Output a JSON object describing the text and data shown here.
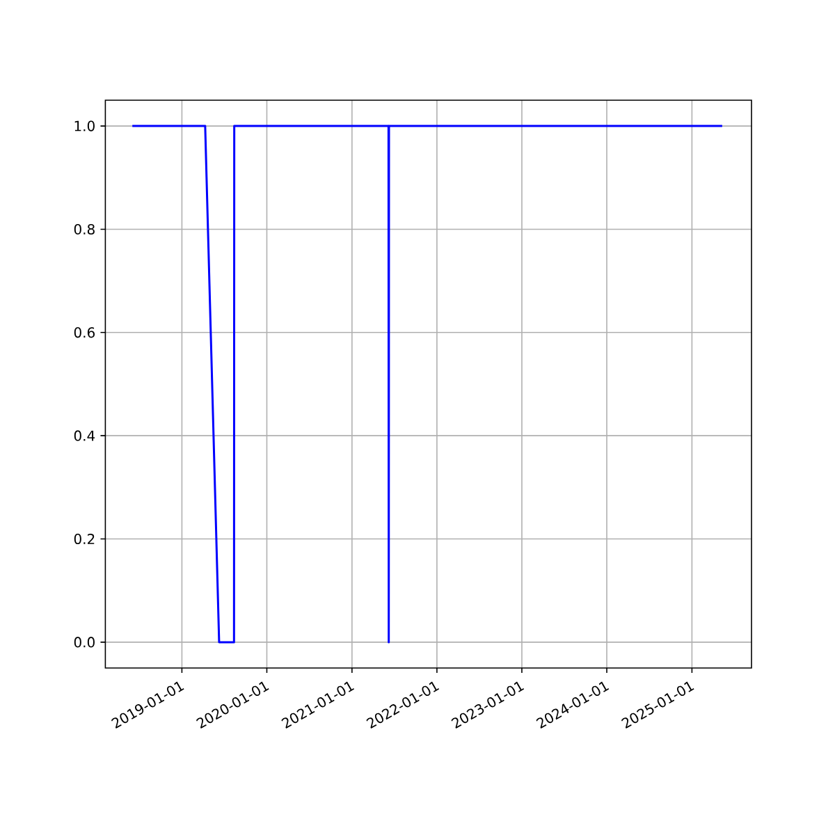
{
  "chart_data": {
    "type": "line",
    "x": [
      "2018-06-02",
      "2019-04-11",
      "2019-06-10",
      "2019-08-13",
      "2019-08-14",
      "2021-06-07",
      "2021-06-08",
      "2021-06-09",
      "2025-05-11"
    ],
    "series": [
      {
        "color": "#0000ff",
        "values": [
          1,
          1,
          0,
          0,
          1,
          1,
          0,
          1,
          1
        ]
      }
    ],
    "xlim": [
      "2018-02-06",
      "2025-09-14"
    ],
    "xticks": [
      "2019-01-01",
      "2020-01-01",
      "2021-01-01",
      "2022-01-01",
      "2023-01-01",
      "2024-01-01",
      "2025-01-01"
    ],
    "ylim": [
      -0.05,
      1.05
    ],
    "yticks": [
      {
        "value": 0,
        "label": "0.0"
      },
      {
        "value": 0.2,
        "label": "0.2"
      },
      {
        "value": 0.4,
        "label": "0.4"
      },
      {
        "value": 0.6,
        "label": "0.6"
      },
      {
        "value": 0.8,
        "label": "0.8"
      },
      {
        "value": 1,
        "label": "1.0"
      }
    ],
    "grid": true,
    "marker": "none",
    "line_style": "solid"
  }
}
